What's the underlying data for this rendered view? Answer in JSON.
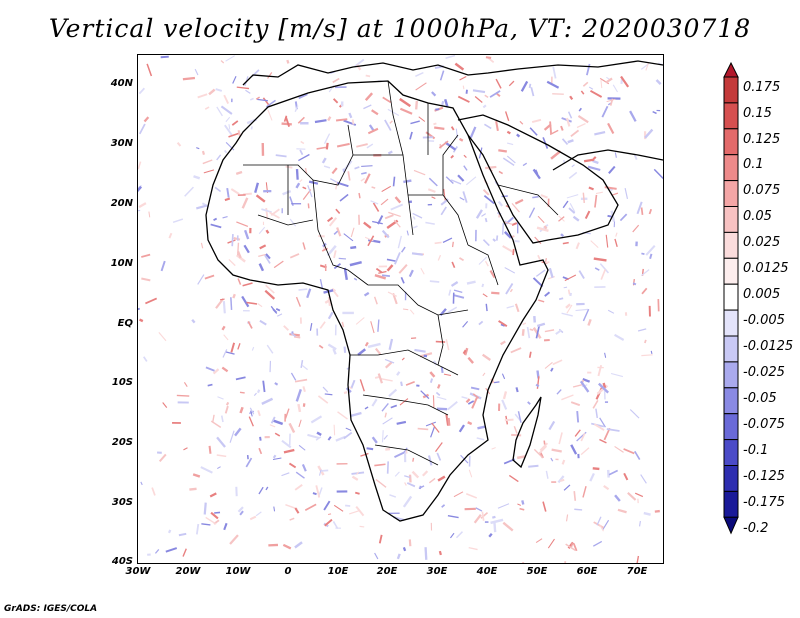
{
  "title": "Vertical velocity [m/s] at 1000hPa, VT: 2020030718",
  "credit": "GrADS: IGES/COLA",
  "lat_labels": [
    "40N",
    "30N",
    "20N",
    "10N",
    "EQ",
    "10S",
    "20S",
    "30S",
    "40S"
  ],
  "lon_labels": [
    "30W",
    "20W",
    "10W",
    "0",
    "10E",
    "20E",
    "30E",
    "40E",
    "50E",
    "60E",
    "70E"
  ],
  "colorbar": {
    "labels": [
      "0.175",
      "0.15",
      "0.125",
      "0.1",
      "0.075",
      "0.05",
      "0.025",
      "0.0125",
      "0.005",
      "-0.005",
      "-0.0125",
      "-0.025",
      "-0.05",
      "-0.075",
      "-0.1",
      "-0.125",
      "-0.175",
      "-0.2"
    ],
    "colors": [
      "#b2182b",
      "#c43a3a",
      "#d65050",
      "#e36a6a",
      "#ee8a8a",
      "#f4a6a6",
      "#f8c2c2",
      "#fbdcdc",
      "#fdeeee",
      "#ffffff",
      "#e4e4fb",
      "#c9c9f5",
      "#aaaaee",
      "#8a8ae4",
      "#6a6ad8",
      "#4b4bc8",
      "#2e2eb0",
      "#1a1a99",
      "#0a0a7a"
    ]
  }
}
